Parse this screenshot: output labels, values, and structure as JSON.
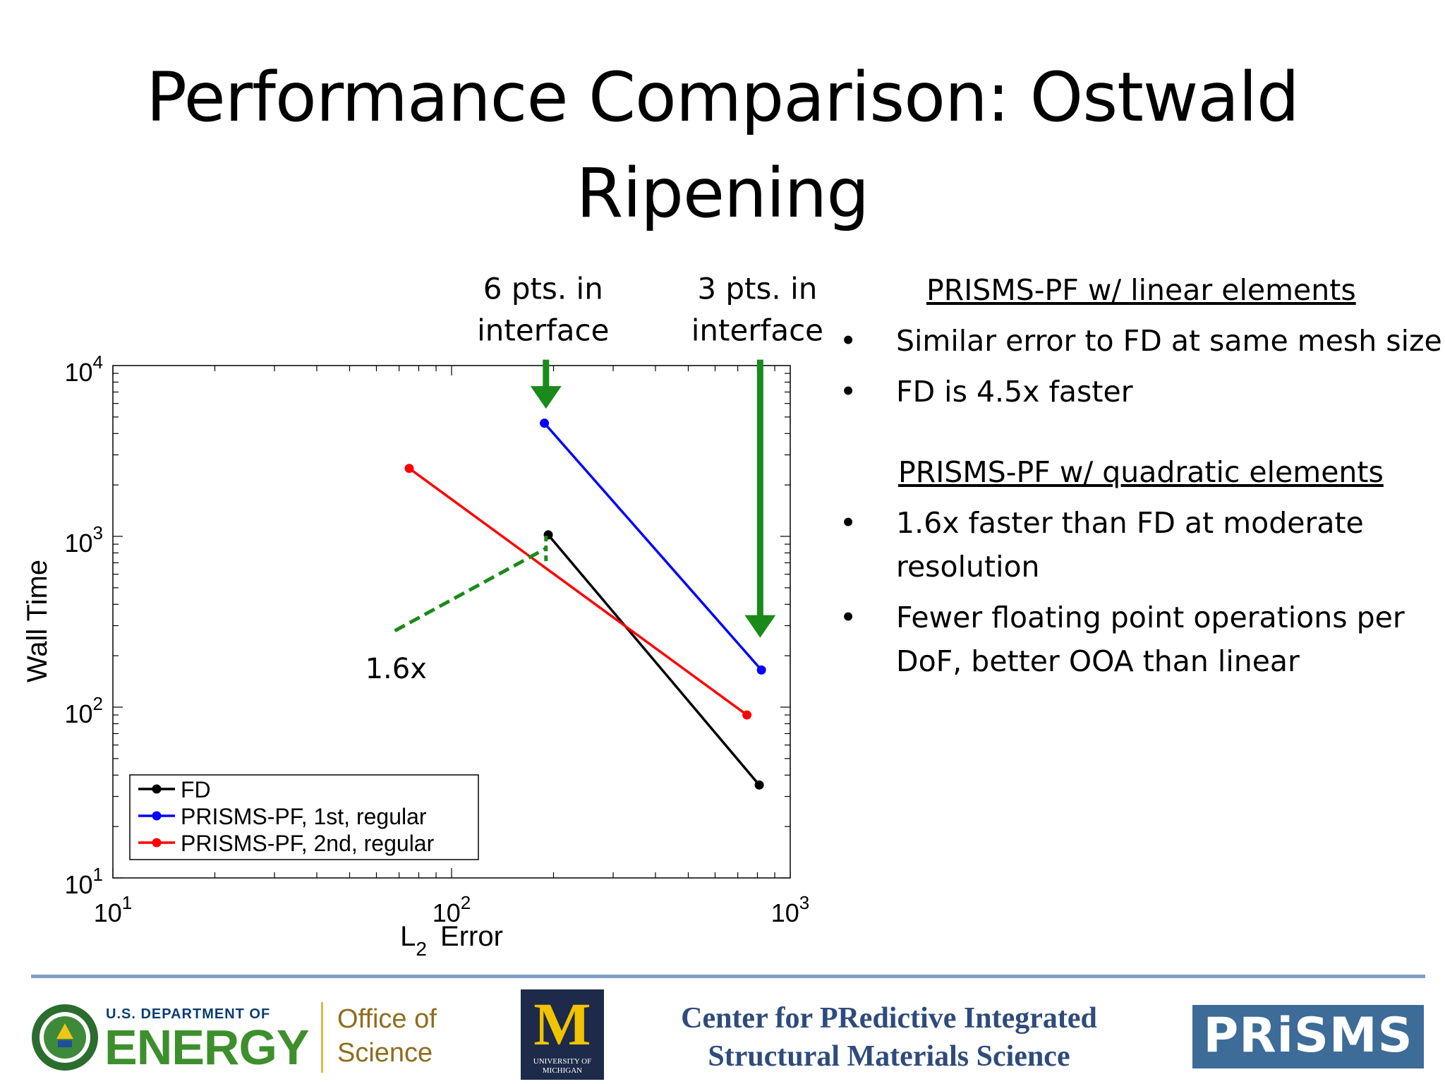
{
  "title": {
    "line1": "Performance Comparison: Ostwald",
    "line2": "Ripening"
  },
  "chart_data": {
    "type": "line",
    "x_scale": "log",
    "y_scale": "log",
    "xlim": [
      10,
      1000
    ],
    "ylim": [
      10,
      10000
    ],
    "xlabel": "L2 Error",
    "ylabel": "Wall Time",
    "x_ticks": [
      {
        "base": "10",
        "exp": "1",
        "value": 10
      },
      {
        "base": "10",
        "exp": "2",
        "value": 100
      },
      {
        "base": "10",
        "exp": "3",
        "value": 1000
      }
    ],
    "y_ticks": [
      {
        "base": "10",
        "exp": "1",
        "value": 10
      },
      {
        "base": "10",
        "exp": "2",
        "value": 100
      },
      {
        "base": "10",
        "exp": "3",
        "value": 1000
      },
      {
        "base": "10",
        "exp": "4",
        "value": 10000
      }
    ],
    "series": [
      {
        "name": "FD",
        "color": "#000000",
        "points": [
          [
            193,
            1020
          ],
          [
            810,
            35
          ]
        ]
      },
      {
        "name": "PRISMS-PF, 1st, regular",
        "color": "#0000ff",
        "points": [
          [
            188,
            4600
          ],
          [
            822,
            165
          ]
        ]
      },
      {
        "name": "PRISMS-PF, 2nd, regular",
        "color": "#ff0000",
        "points": [
          [
            75,
            2500
          ],
          [
            745,
            90
          ]
        ]
      }
    ],
    "annotations": [
      {
        "name": "arrow-6pts",
        "line1": "6 pts. in",
        "line2": "interface",
        "color": "#1a8a1a",
        "x": 190,
        "y_from": 8300,
        "y_to": 5700
      },
      {
        "name": "arrow-3pts",
        "line1": "3 pts. in",
        "line2": "interface",
        "color": "#1a8a1a",
        "x": 815,
        "y_from": 8300,
        "y_to": 260
      },
      {
        "name": "speedup",
        "label": "1.6x",
        "color": "#1a8a1a",
        "from": [
          68,
          280
        ],
        "to": [
          190,
          850
        ]
      }
    ],
    "legend_position": "bottom-left"
  },
  "bullets": {
    "linear_heading": "PRISMS-PF w/ linear elements",
    "linear_items": [
      "Similar error to FD at same mesh size",
      "FD is 4.5x faster"
    ],
    "quad_heading": "PRISMS-PF w/ quadratic elements",
    "quad_items": [
      "1.6x faster than FD at moderate resolution",
      "Fewer floating point operations per DoF, better OOA than linear"
    ]
  },
  "footer": {
    "doe_line1": "U.S. DEPARTMENT OF",
    "doe_line2": "ENERGY",
    "doe_office1": "Office of",
    "doe_office2": "Science",
    "umich_letter": "M",
    "umich_line1": "UNIVERSITY OF",
    "umich_line2": "MICHIGAN",
    "center_line1": "Center for  PRedictive Integrated",
    "center_line2": "Structural Materials Science",
    "prisms": "PRiSMS"
  }
}
